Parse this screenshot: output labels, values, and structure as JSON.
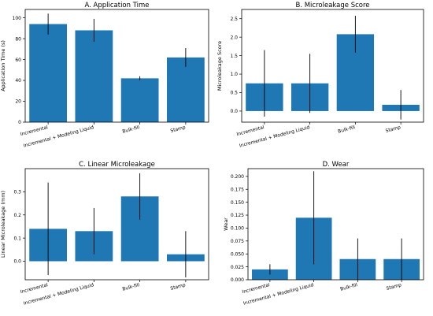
{
  "colors": {
    "bar": "#1f77b4",
    "axis": "#000000",
    "errorbar": "#000000"
  },
  "chart_data": [
    {
      "type": "bar",
      "title": "A. Application Time",
      "xlabel": "",
      "ylabel": "Application Time (s)",
      "categories": [
        "Incremental",
        "Incremental + Modeling Liquid",
        "Bulk-fill",
        "Stamp"
      ],
      "values": [
        94,
        88,
        42,
        62
      ],
      "errors": [
        10,
        11,
        2,
        9
      ],
      "ylim": [
        0,
        108
      ],
      "yticks": [
        "0",
        "20",
        "40",
        "60",
        "80",
        "100"
      ],
      "ytick_values": [
        0,
        20,
        40,
        60,
        80,
        100
      ],
      "grid": false
    },
    {
      "type": "bar",
      "title": "B. Microleakage Score",
      "xlabel": "",
      "ylabel": "Microleakage Score",
      "categories": [
        "Incremental",
        "Incremental + Modeling Liquid",
        "Bulk-fill",
        "Stamp"
      ],
      "values": [
        0.75,
        0.75,
        2.08,
        0.17
      ],
      "errors": [
        0.9,
        0.8,
        0.5,
        0.4
      ],
      "ylim": [
        -0.3,
        2.75
      ],
      "yticks": [
        "0.0",
        "0.5",
        "1.0",
        "1.5",
        "2.0",
        "2.5"
      ],
      "ytick_values": [
        0,
        0.5,
        1.0,
        1.5,
        2.0,
        2.5
      ],
      "grid": false
    },
    {
      "type": "bar",
      "title": "C. Linear Microleakage",
      "xlabel": "",
      "ylabel": "Linear Microleakage (mm)",
      "categories": [
        "Incremental",
        "Incremental + Modeling Liquid",
        "Bulk-fill",
        "Stamp"
      ],
      "values": [
        0.14,
        0.13,
        0.28,
        0.03
      ],
      "errors": [
        0.2,
        0.1,
        0.1,
        0.1
      ],
      "ylim": [
        -0.08,
        0.4
      ],
      "yticks": [
        "0.0",
        "0.1",
        "0.2",
        "0.3"
      ],
      "ytick_values": [
        0,
        0.1,
        0.2,
        0.3
      ],
      "grid": false
    },
    {
      "type": "bar",
      "title": "D. Wear",
      "xlabel": "",
      "ylabel": "Wear",
      "categories": [
        "Incremental",
        "Incremental + Modeling Liquid",
        "Bulk-fill",
        "Stamp"
      ],
      "values": [
        0.02,
        0.12,
        0.04,
        0.04
      ],
      "errors": [
        0.01,
        0.09,
        0.04,
        0.04
      ],
      "ylim": [
        0,
        0.215
      ],
      "yticks": [
        "0.000",
        "0.025",
        "0.050",
        "0.075",
        "0.100",
        "0.125",
        "0.150",
        "0.175",
        "0.200"
      ],
      "ytick_values": [
        0,
        0.025,
        0.05,
        0.075,
        0.1,
        0.125,
        0.15,
        0.175,
        0.2
      ],
      "grid": false
    }
  ]
}
